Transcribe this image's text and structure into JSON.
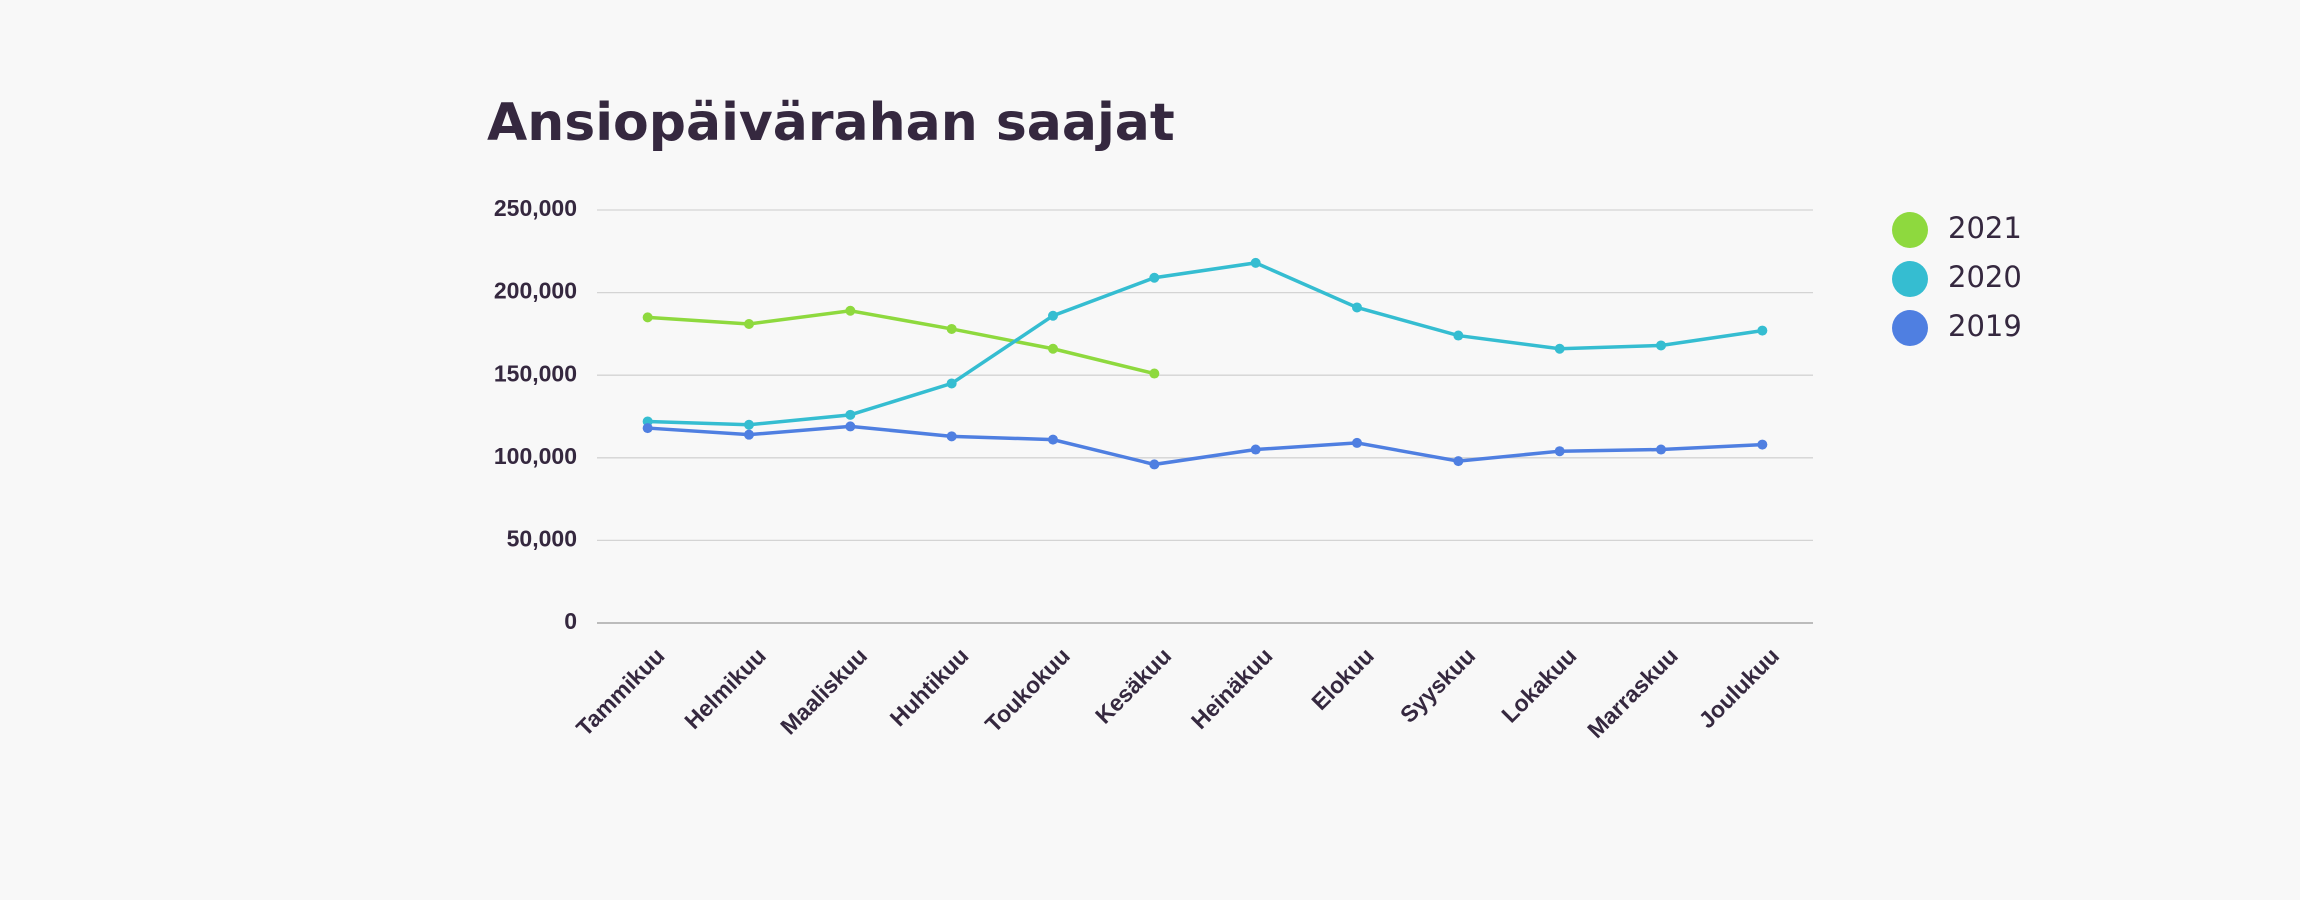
{
  "chart_data": {
    "type": "line",
    "title": "Ansiopäivärahan saajat",
    "categories": [
      "Tammikuu",
      "Helmikuu",
      "Maaliskuu",
      "Huhtikuu",
      "Toukokuu",
      "Kesäkuu",
      "Heinäkuu",
      "Elokuu",
      "Syyskuu",
      "Lokakuu",
      "Marraskuu",
      "Joulukuu"
    ],
    "series": [
      {
        "name": "2021",
        "color": "#8ed93e",
        "values": [
          185000,
          181000,
          189000,
          178000,
          166000,
          151000,
          null,
          null,
          null,
          null,
          null,
          null
        ]
      },
      {
        "name": "2020",
        "color": "#35bdd1",
        "values": [
          122000,
          120000,
          126000,
          145000,
          186000,
          209000,
          218000,
          191000,
          174000,
          166000,
          168000,
          177000
        ]
      },
      {
        "name": "2019",
        "color": "#4f7fe1",
        "values": [
          118000,
          114000,
          119000,
          113000,
          111000,
          96000,
          105000,
          109000,
          98000,
          104000,
          105000,
          108000
        ]
      }
    ],
    "ylim": [
      0,
      250000
    ],
    "yticks": [
      0,
      {
        "value": 50000,
        "label": "50,000"
      },
      {
        "value": 100000,
        "label": "100,000"
      },
      {
        "value": 150000,
        "label": "150,000"
      },
      {
        "value": 200000,
        "label": "200,000"
      },
      {
        "value": 250000,
        "label": "250,000"
      }
    ],
    "grid": true,
    "legend": "right"
  }
}
